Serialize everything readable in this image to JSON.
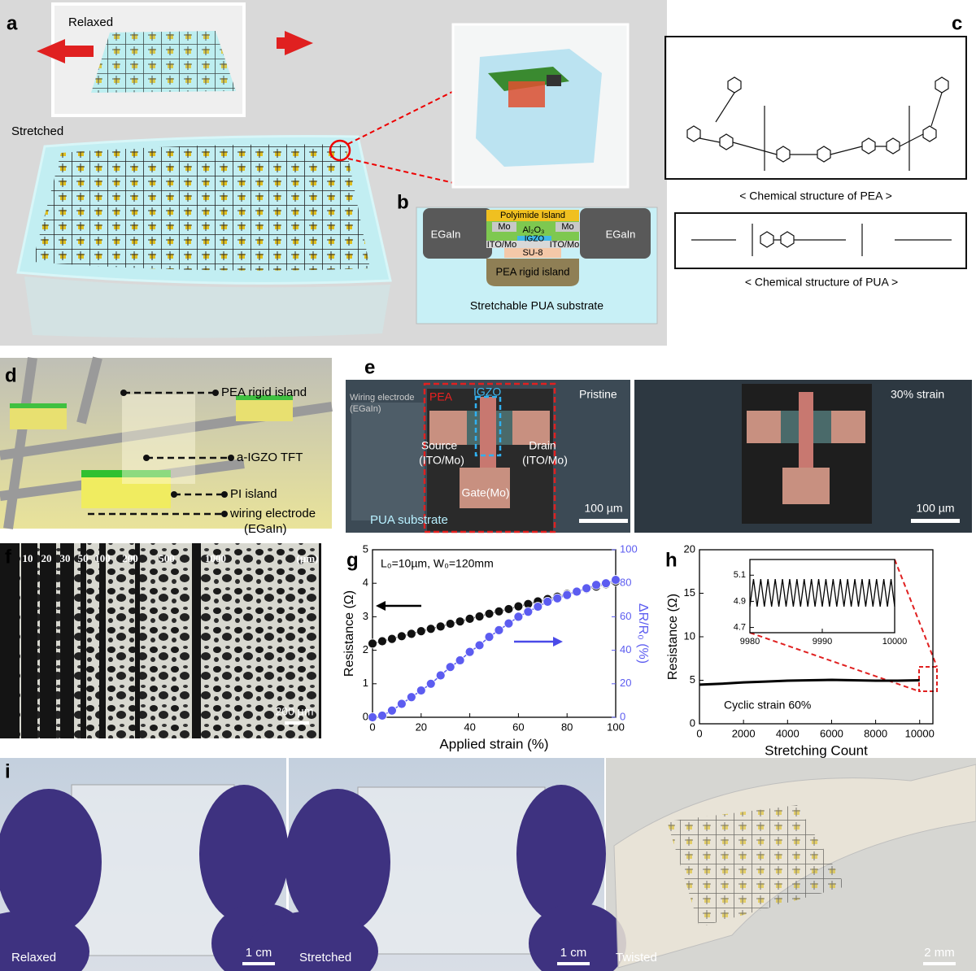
{
  "panels": {
    "a": {
      "label": "a",
      "relaxed": "Relaxed",
      "stretched": "Stretched"
    },
    "b": {
      "label": "b",
      "layers": [
        "Polyimide Island",
        "Mo",
        "Al₂O₃",
        "Mo",
        "IGZO",
        "ITO/Mo",
        "ITO/Mo",
        "SU-8"
      ],
      "egain_left": "EGaIn",
      "egain_right": "EGaIn",
      "island": "PEA rigid island",
      "substrate": "Stretchable PUA substrate"
    },
    "c": {
      "label": "c",
      "pea_caption": "< Chemical structure of PEA >",
      "pua_caption": "< Chemical structure of PUA >"
    },
    "d": {
      "label": "d",
      "callouts": [
        "PEA rigid island",
        "a-IGZO TFT",
        "PI island",
        "wiring electrode",
        "(EGaIn)"
      ]
    },
    "e": {
      "label": "e",
      "wiring": "Wiring electrode",
      "wiring_material": "(EGaIn)",
      "pea": "PEA",
      "igzo": "IGZO",
      "pristine": "Pristine",
      "source": "Source",
      "source_material": "(ITO/Mo)",
      "drain": "Drain",
      "drain_material": "(ITO/Mo)",
      "gate": "Gate(Mo)",
      "substrate": "PUA substrate",
      "scale_left": "100 µm",
      "strained": "30% strain",
      "scale_right": "100 µm"
    },
    "f": {
      "label": "f",
      "widths": [
        "10",
        "20",
        "30",
        "50",
        "100",
        "200",
        "500",
        "1000"
      ],
      "unit": "(µm)",
      "scale": "200 µm"
    },
    "i": {
      "label": "i",
      "photos": [
        {
          "caption": "Relaxed",
          "scale": "1 cm"
        },
        {
          "caption": "Stretched",
          "scale": "1 cm"
        },
        {
          "caption": "Twisted",
          "scale": "2 mm"
        }
      ]
    }
  },
  "chart_data": [
    {
      "type": "line",
      "label": "g",
      "annotation": "L₀=10µm, W₀=120mm",
      "x_label": "Applied strain (%)",
      "y_label": "Resistance (Ω)",
      "y2_label": "ΔR/R₀ (%)",
      "x": [
        0,
        4,
        8,
        12,
        16,
        20,
        24,
        28,
        32,
        36,
        40,
        44,
        48,
        52,
        56,
        60,
        64,
        68,
        72,
        76,
        80,
        84,
        88,
        92,
        96,
        100
      ],
      "series": [
        {
          "color": "#111111",
          "values": [
            2.2,
            2.27,
            2.34,
            2.42,
            2.49,
            2.57,
            2.64,
            2.71,
            2.79,
            2.86,
            2.94,
            3.01,
            3.09,
            3.16,
            3.23,
            3.31,
            3.38,
            3.46,
            3.53,
            3.6,
            3.68,
            3.75,
            3.83,
            3.9,
            3.97,
            4.05
          ]
        },
        {
          "color": "#5c5cf0",
          "axis": "y2",
          "values": [
            0,
            1,
            4,
            8,
            12,
            16,
            20,
            25,
            30,
            34,
            39,
            43,
            48,
            52,
            56,
            60,
            63,
            66,
            69,
            71,
            73,
            75,
            77,
            79,
            80,
            82
          ]
        }
      ],
      "xlim": [
        0,
        100
      ],
      "xticks": [
        0,
        20,
        40,
        60,
        80,
        100
      ],
      "ylim": [
        0,
        5
      ],
      "yticks": [
        0,
        1,
        2,
        3,
        4,
        5
      ],
      "y2lim": [
        0,
        100
      ],
      "y2ticks": [
        0,
        20,
        40,
        60,
        80,
        100
      ]
    },
    {
      "type": "line",
      "label": "h",
      "annotation": "Cyclic strain 60%",
      "x_label": "Stretching Count",
      "y_label": "Resistance (Ω)",
      "x": [
        0,
        1000,
        2000,
        3000,
        4000,
        5000,
        6000,
        7000,
        8000,
        9000,
        10000
      ],
      "series": [
        {
          "color": "#000000",
          "values": [
            4.5,
            4.6,
            4.75,
            4.85,
            4.95,
            5.0,
            5.05,
            5.0,
            4.95,
            4.95,
            5.0
          ]
        }
      ],
      "xlim": [
        0,
        10600
      ],
      "xticks": [
        0,
        2000,
        4000,
        6000,
        8000,
        10000
      ],
      "ylim": [
        0,
        20
      ],
      "yticks": [
        0,
        5,
        10,
        15,
        20
      ]
    },
    {
      "type": "line",
      "x": [
        9980,
        9980.5,
        9981,
        9981.5,
        9982,
        9982.5,
        9983,
        9983.5,
        9984,
        9984.5,
        9985,
        9985.5,
        9986,
        9986.5,
        9987,
        9987.5,
        9988,
        9988.5,
        9989,
        9989.5,
        9990,
        9990.5,
        9991,
        9991.5,
        9992,
        9992.5,
        9993,
        9993.5,
        9994,
        9994.5,
        9995,
        9995.5,
        9996,
        9996.5,
        9997,
        9997.5,
        9998,
        9998.5,
        9999,
        9999.5,
        10000
      ],
      "series": [
        {
          "color": "#000000",
          "values": [
            4.86,
            5.07,
            4.86,
            5.07,
            4.86,
            5.07,
            4.86,
            5.07,
            4.86,
            5.07,
            4.86,
            5.07,
            4.86,
            5.07,
            4.86,
            5.07,
            4.86,
            5.07,
            4.86,
            5.07,
            4.86,
            5.07,
            4.86,
            5.07,
            4.86,
            5.07,
            4.86,
            5.07,
            4.86,
            5.07,
            4.86,
            5.07,
            4.86,
            5.07,
            4.86,
            5.07,
            4.86,
            5.07,
            4.86,
            5.07,
            4.86
          ]
        }
      ],
      "xlim": [
        9980,
        10000
      ],
      "xticks": [
        9980,
        9990,
        10000
      ],
      "ylim": [
        4.66,
        5.22
      ],
      "yticks": [
        4.7,
        4.9,
        5.1
      ]
    }
  ]
}
